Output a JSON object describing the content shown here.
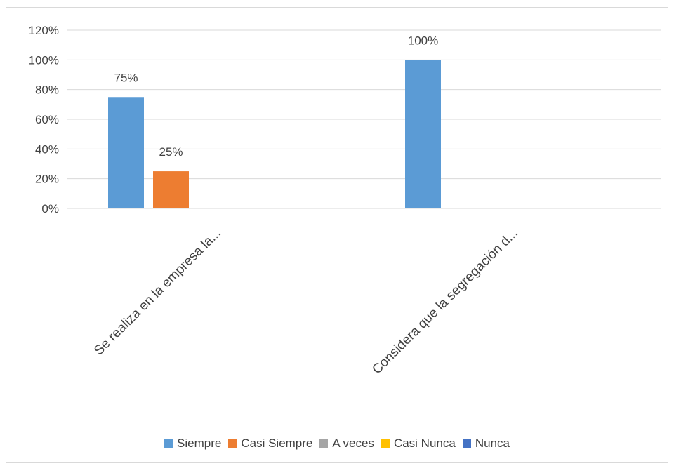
{
  "chart_data": {
    "type": "bar",
    "categories": [
      "Se realiza en la empresa la...",
      "Considera que la segregación d..."
    ],
    "series": [
      {
        "name": "Siempre",
        "color": "#5b9bd5",
        "values": [
          75,
          100
        ]
      },
      {
        "name": "Casi Siempre",
        "color": "#ed7d31",
        "values": [
          25,
          0
        ]
      },
      {
        "name": "A veces",
        "color": "#a5a5a5",
        "values": [
          0,
          0
        ]
      },
      {
        "name": "Casi Nunca",
        "color": "#ffc000",
        "values": [
          0,
          0
        ]
      },
      {
        "name": "Nunca",
        "color": "#4472c4",
        "values": [
          0,
          0
        ]
      }
    ],
    "data_labels": [
      {
        "series": 0,
        "category": 0,
        "text": "75%"
      },
      {
        "series": 1,
        "category": 0,
        "text": "25%"
      },
      {
        "series": 0,
        "category": 1,
        "text": "100%"
      }
    ],
    "y_ticks": [
      "0%",
      "20%",
      "40%",
      "60%",
      "80%",
      "100%",
      "120%"
    ],
    "ylim": [
      0,
      120
    ],
    "grid": true,
    "legend_position": "bottom"
  }
}
